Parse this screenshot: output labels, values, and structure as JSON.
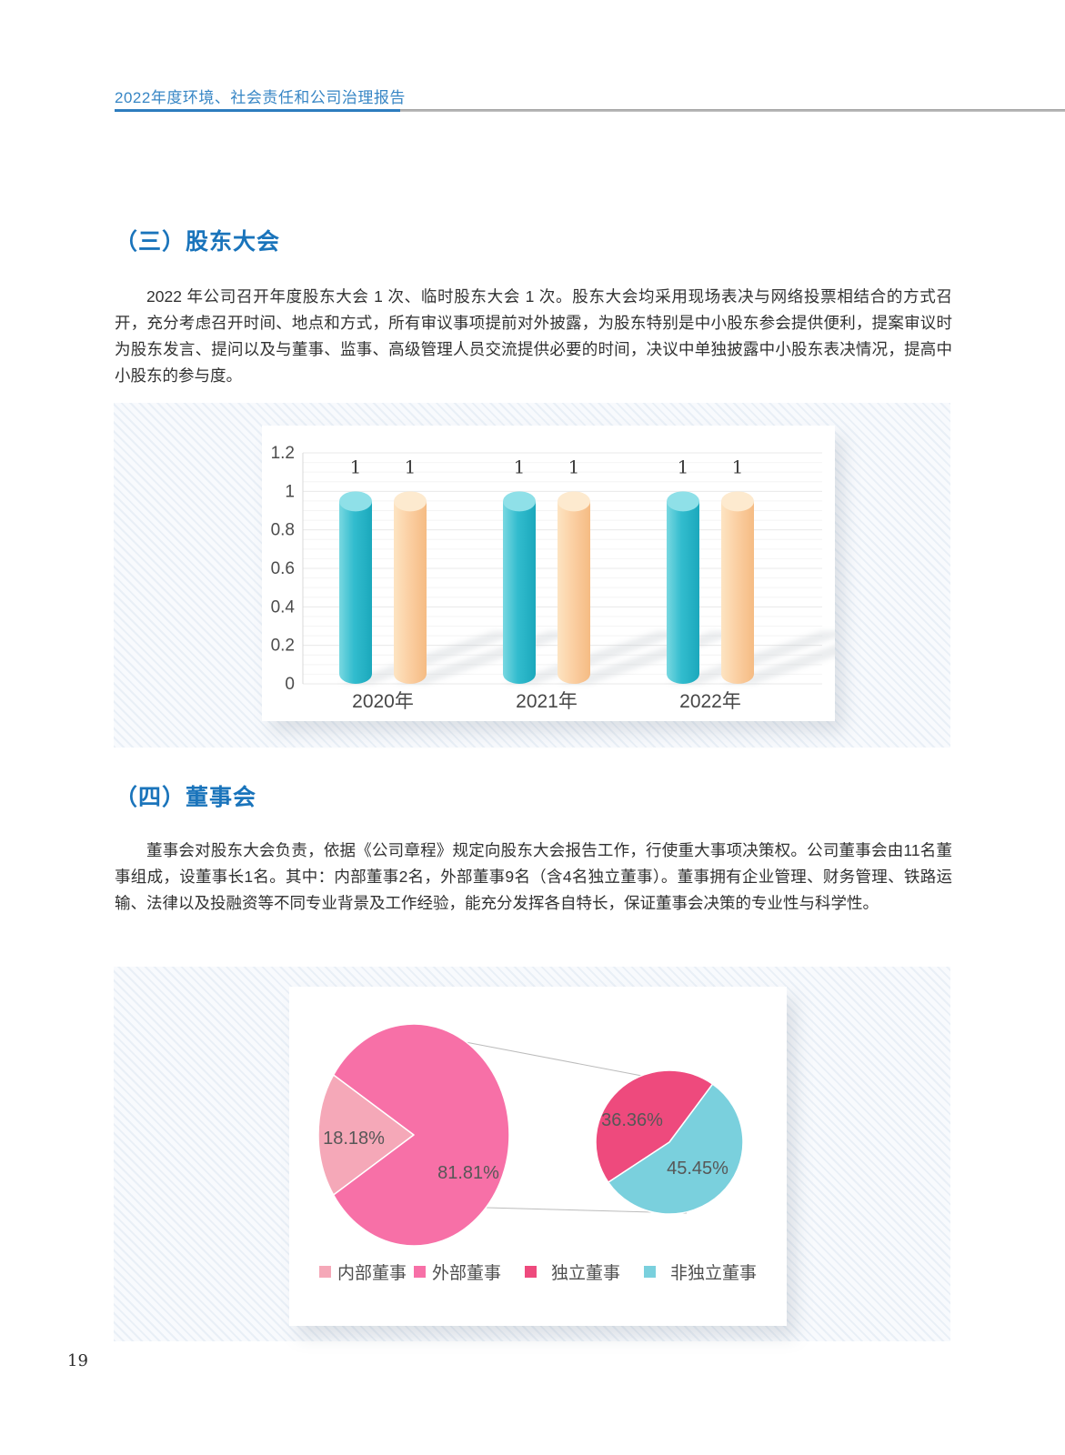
{
  "header": {
    "title": "2022年度环境、社会责任和公司治理报告"
  },
  "sections": {
    "shareholders_meeting": {
      "title": "（三）股东大会",
      "paragraph": "2022 年公司召开年度股东大会 1 次、临时股东大会 1 次。股东大会均采用现场表决与网络投票相结合的方式召开，充分考虑召开时间、地点和方式，所有审议事项提前对外披露，为股东特别是中小股东参会提供便利，提案审议时为股东发言、提问以及与董事、监事、高级管理人员交流提供必要的时间，决议中单独披露中小股东表决情况，提高中小股东的参与度。"
    },
    "board_of_directors": {
      "title": "（四）董事会",
      "paragraph": "董事会对股东大会负责，依据《公司章程》规定向股东大会报告工作，行使重大事项决策权。公司董事会由11名董事组成，设董事长1名。其中：内部董事2名，外部董事9名（含4名独立董事）。董事拥有企业管理、财务管理、铁路运输、法律以及投融资等不同专业背景及工作经验，能充分发挥各自特长，保证董事会决策的专业性与科学性。"
    }
  },
  "footer": {
    "page_number": "19"
  },
  "chart_data": [
    {
      "type": "bar",
      "categories": [
        "2020年",
        "2021年",
        "2022年"
      ],
      "series": [
        {
          "values": [
            1,
            1,
            1
          ],
          "color": "#2fbccd"
        },
        {
          "values": [
            1,
            1,
            1
          ],
          "color": "#f9cfa2"
        }
      ],
      "ylim": [
        0,
        1.2
      ],
      "yticks": [
        "0",
        "0.2",
        "0.4",
        "0.6",
        "0.8",
        "1",
        "1.2"
      ],
      "value_labels": true,
      "grid": true,
      "legend_position": "none"
    },
    {
      "type": "pie",
      "variant": "pie-of-pie",
      "main_slices": [
        {
          "label": "内部董事",
          "value": 18.18,
          "text": "18.18%",
          "color": "#f5a8b8"
        },
        {
          "label": "外部董事",
          "value": 81.81,
          "text": "81.81%",
          "color": "#f770a7"
        }
      ],
      "secondary_slices": [
        {
          "label": "独立董事",
          "value": 36.36,
          "text": "36.36%",
          "color": "#ee4a7d"
        },
        {
          "label": "非独立董事",
          "value": 45.45,
          "text": "45.45%",
          "color": "#7ad0dd"
        }
      ],
      "legend_labels": [
        "内部董事",
        "外部董事",
        "独立董事",
        "非独立董事"
      ],
      "legend_position": "bottom"
    }
  ]
}
